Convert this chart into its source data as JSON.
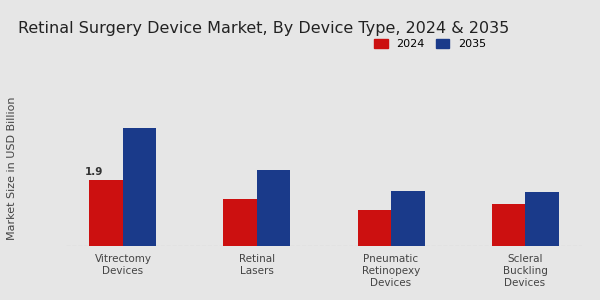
{
  "title": "Retinal Surgery Device Market, By Device Type, 2024 & 2035",
  "ylabel": "Market Size in USD Billion",
  "categories": [
    "Vitrectomy\nDevices",
    "Retinal\nLasers",
    "Pneumatic\nRetinopexy\nDevices",
    "Scleral\nBuckling\nDevices"
  ],
  "values_2024": [
    1.9,
    1.35,
    1.05,
    1.2
  ],
  "values_2035": [
    3.4,
    2.2,
    1.6,
    1.55
  ],
  "color_2024": "#cc1010",
  "color_2035": "#1a3a8a",
  "bar_width": 0.25,
  "annotation_value": "1.9",
  "legend_labels": [
    "2024",
    "2035"
  ],
  "background_color": "#e6e6e6",
  "ylim": [
    0,
    4.5
  ],
  "title_fontsize": 11.5,
  "axis_label_fontsize": 8,
  "tick_fontsize": 7.5,
  "legend_fontsize": 8,
  "bottom_bar_color": "#cc1010",
  "bottom_bar_height": 0.035
}
